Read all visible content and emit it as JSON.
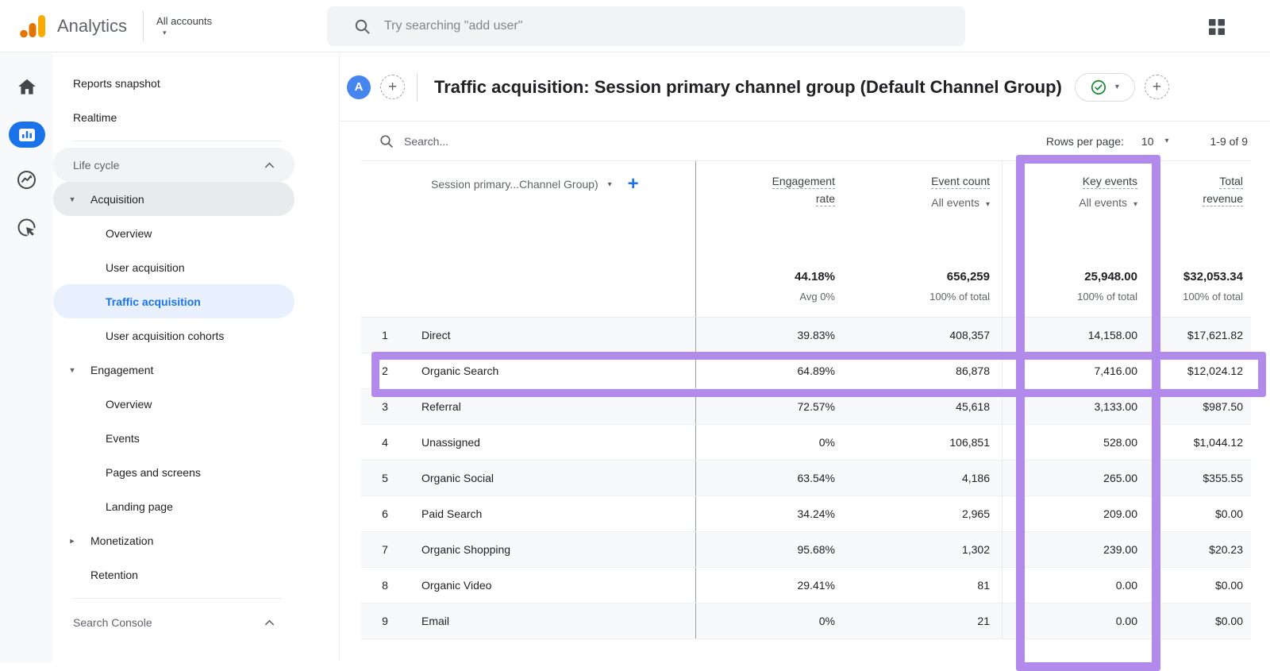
{
  "topbar": {
    "product": "Analytics",
    "account_switcher": "All accounts",
    "search_placeholder": "Try searching \"add user\""
  },
  "report_header": {
    "avatar_letter": "A",
    "title": "Traffic acquisition: Session primary channel group (Default Channel Group)"
  },
  "controls": {
    "search_placeholder": "Search...",
    "rows_per_page_label": "Rows per page:",
    "rows_per_page_value": "10",
    "pagination_range": "1-9 of 9"
  },
  "sidebar": {
    "items": [
      {
        "type": "item",
        "level": 0,
        "label": "Reports snapshot"
      },
      {
        "type": "item",
        "level": 0,
        "label": "Realtime"
      },
      {
        "type": "divider"
      },
      {
        "type": "group-header",
        "label": "Life cycle",
        "chevron": "up",
        "pill": "light"
      },
      {
        "type": "item",
        "level": 1,
        "label": "Acquisition",
        "arrow": "down",
        "pill": "gray"
      },
      {
        "type": "item",
        "level": 2,
        "label": "Overview"
      },
      {
        "type": "item",
        "level": 2,
        "label": "User acquisition"
      },
      {
        "type": "item",
        "level": 2,
        "label": "Traffic acquisition",
        "active": true
      },
      {
        "type": "item",
        "level": 2,
        "label": "User acquisition cohorts"
      },
      {
        "type": "item",
        "level": 1,
        "label": "Engagement",
        "arrow": "down"
      },
      {
        "type": "item",
        "level": 2,
        "label": "Overview"
      },
      {
        "type": "item",
        "level": 2,
        "label": "Events"
      },
      {
        "type": "item",
        "level": 2,
        "label": "Pages and screens"
      },
      {
        "type": "item",
        "level": 2,
        "label": "Landing page"
      },
      {
        "type": "item",
        "level": 1,
        "label": "Monetization",
        "arrow": "right"
      },
      {
        "type": "item",
        "level": 1,
        "label": "Retention"
      },
      {
        "type": "divider"
      },
      {
        "type": "group-header",
        "label": "Search Console",
        "chevron": "up"
      }
    ]
  },
  "table": {
    "dimension_header": "Session primary...Channel Group)",
    "columns": [
      {
        "lines": [
          "Engagement",
          "rate"
        ],
        "selector": null,
        "total": "44.18%",
        "total_sub": "Avg 0%"
      },
      {
        "lines": [
          "Event count"
        ],
        "selector": "All events",
        "total": "656,259",
        "total_sub": "100% of total"
      },
      {
        "lines": [
          "Key events"
        ],
        "selector": "All events",
        "total": "25,948.00",
        "total_sub": "100% of total"
      },
      {
        "lines": [
          "Total",
          "revenue"
        ],
        "selector": null,
        "total": "$32,053.34",
        "total_sub": "100% of total"
      }
    ],
    "rows": [
      {
        "num": "1",
        "channel": "Direct",
        "values": [
          "39.83%",
          "408,357",
          "14,158.00",
          "$17,621.82"
        ]
      },
      {
        "num": "2",
        "channel": "Organic Search",
        "values": [
          "64.89%",
          "86,878",
          "7,416.00",
          "$12,024.12"
        ]
      },
      {
        "num": "3",
        "channel": "Referral",
        "values": [
          "72.57%",
          "45,618",
          "3,133.00",
          "$987.50"
        ]
      },
      {
        "num": "4",
        "channel": "Unassigned",
        "values": [
          "0%",
          "106,851",
          "528.00",
          "$1,044.12"
        ]
      },
      {
        "num": "5",
        "channel": "Organic Social",
        "values": [
          "63.54%",
          "4,186",
          "265.00",
          "$355.55"
        ]
      },
      {
        "num": "6",
        "channel": "Paid Search",
        "values": [
          "34.24%",
          "2,965",
          "209.00",
          "$0.00"
        ]
      },
      {
        "num": "7",
        "channel": "Organic Shopping",
        "values": [
          "95.68%",
          "1,302",
          "239.00",
          "$20.23"
        ]
      },
      {
        "num": "8",
        "channel": "Organic Video",
        "values": [
          "29.41%",
          "81",
          "0.00",
          "$0.00"
        ]
      },
      {
        "num": "9",
        "channel": "Email",
        "values": [
          "0%",
          "21",
          "0.00",
          "$0.00"
        ]
      }
    ]
  },
  "highlight_color": "#b18aeb"
}
